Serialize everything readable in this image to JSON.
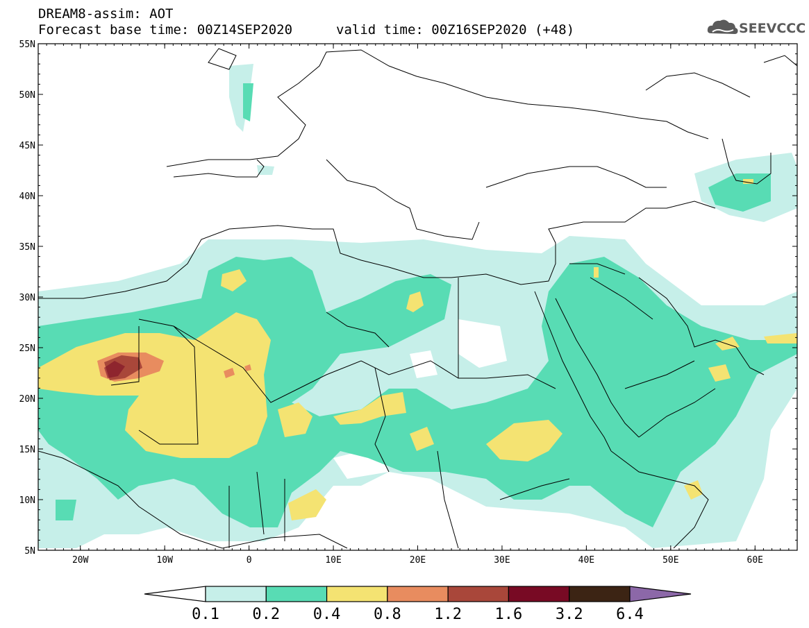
{
  "header": {
    "title_line1": "DREAM8-assim: AOT",
    "title_line2": "Forecast base time: 00Z14SEP2020",
    "title_valid": "valid time: 00Z16SEP2020 (+48)",
    "logo_text": "SEEVCCC",
    "logo_icon": "cloud-icon"
  },
  "map": {
    "projection": "lat-lon",
    "lon_range": [
      -25,
      65
    ],
    "lat_range": [
      5,
      55
    ],
    "lat_ticks": [
      "5N",
      "10N",
      "15N",
      "20N",
      "25N",
      "30N",
      "35N",
      "40N",
      "45N",
      "50N",
      "55N"
    ],
    "lon_ticks": [
      "20W",
      "10W",
      "0",
      "10E",
      "20E",
      "30E",
      "40E",
      "50E",
      "60E"
    ]
  },
  "colorbar": {
    "levels": [
      "0.1",
      "0.2",
      "0.4",
      "0.8",
      "1.2",
      "1.6",
      "3.2",
      "6.4"
    ],
    "colors": [
      "#ffffff",
      "#c6efe9",
      "#58dcb4",
      "#f4e372",
      "#e88c5f",
      "#a9473a",
      "#780a24",
      "#3c2414",
      "#8c68a8"
    ]
  }
}
